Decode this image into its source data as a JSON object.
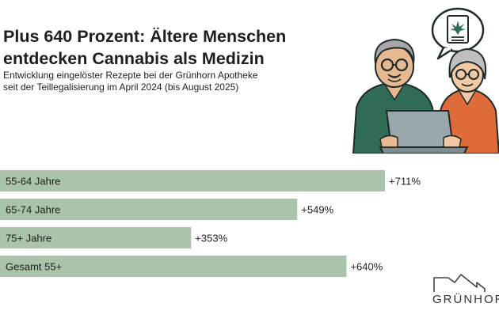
{
  "header": {
    "title_line1": "Plus 640 Prozent: Ältere Menschen",
    "title_line2": "entdecken Cannabis als Medizin",
    "subtitle_line1": "Entwicklung eingelöster Rezepte bei der Grünhorn Apotheke",
    "subtitle_line2": "seit der Teillegalisierung im April 2024 (bis August 2025)"
  },
  "chart_data": {
    "type": "bar",
    "orientation": "horizontal",
    "categories": [
      "55-64 Jahre",
      "65-74 Jahre",
      "75+ Jahre",
      "Gesamt 55+"
    ],
    "values": [
      711,
      549,
      353,
      640
    ],
    "value_labels": [
      "+711%",
      "+549%",
      "+353%",
      "+640%"
    ],
    "unit": "%",
    "bar_color": "#a9c4aa",
    "grid": false,
    "legend": "none",
    "xlim": [
      0,
      711
    ]
  },
  "logo": {
    "wordmark": "GRÜNHORN"
  },
  "colors": {
    "bar": "#a9c4aa",
    "title": "#1e1e1e",
    "logo": "#444444"
  },
  "icons": [
    "cannabis-prescription-icon",
    "speech-bubble-icon",
    "laptop-icon",
    "house-outline-icon"
  ]
}
